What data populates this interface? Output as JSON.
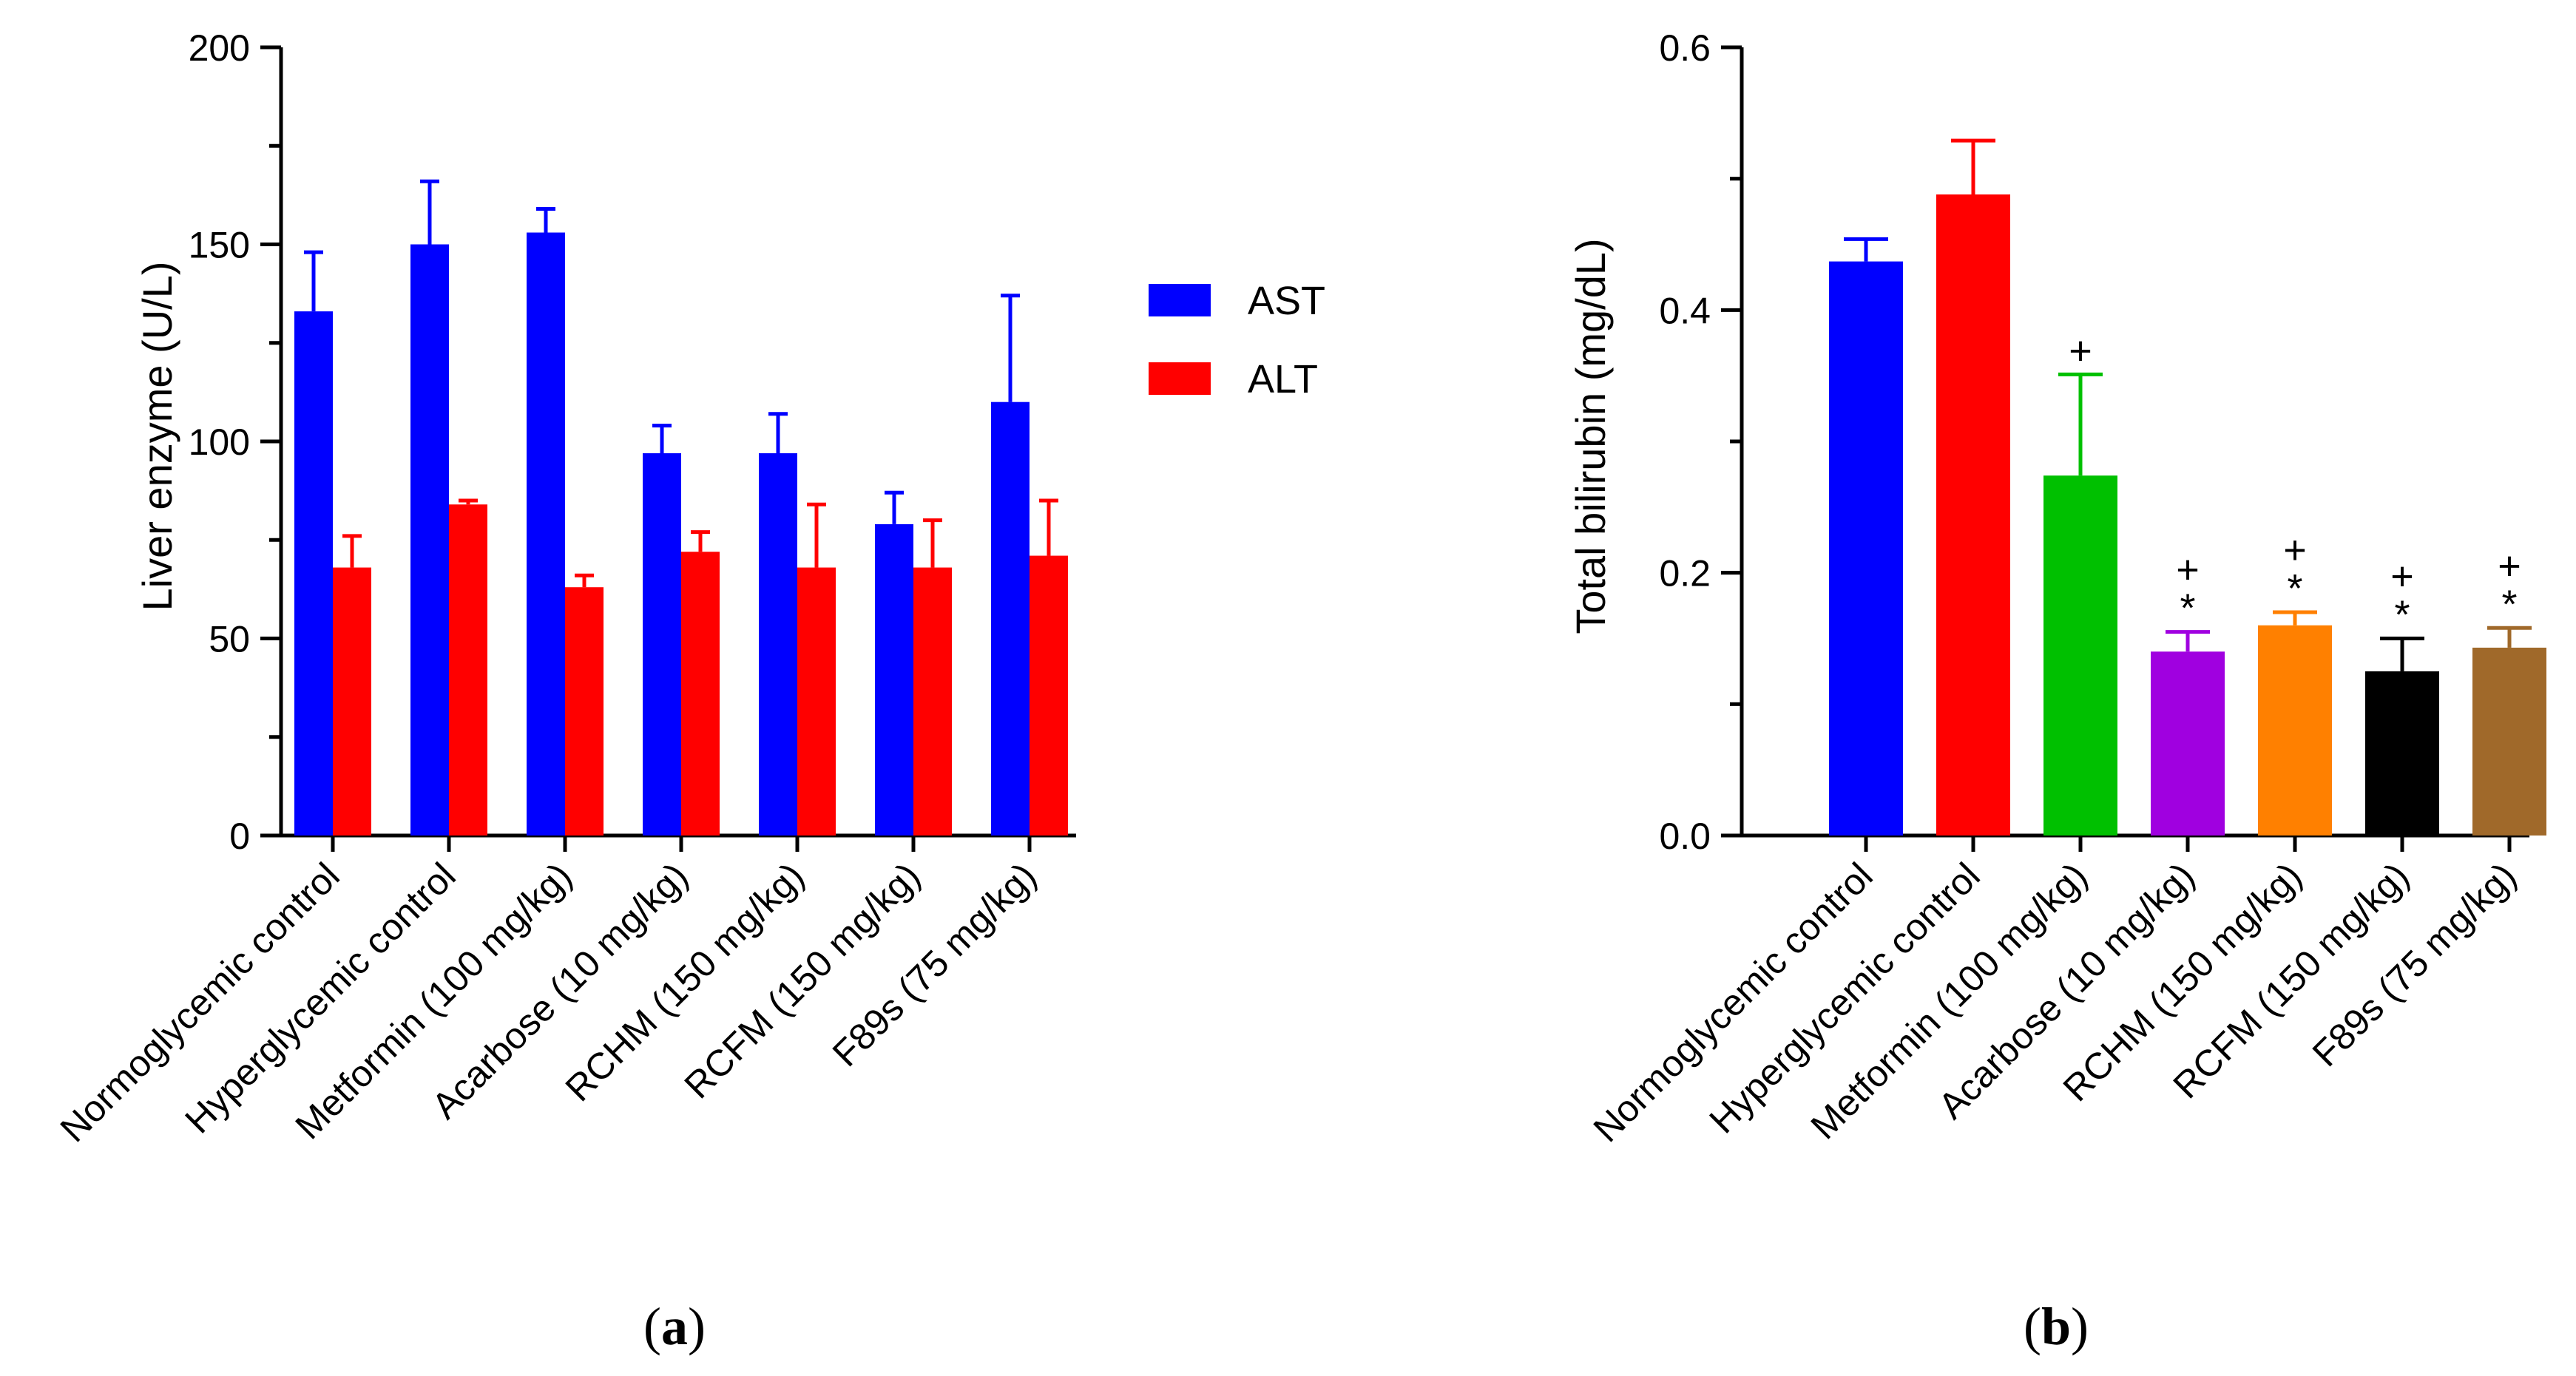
{
  "chart_data": [
    {
      "type": "bar",
      "panel_label": "(a)",
      "panel_letter": "a",
      "ylabel": "Liver enzyme (U/L)",
      "ylim": [
        0,
        200
      ],
      "yticks": [
        "0",
        "50",
        "100",
        "150",
        "200"
      ],
      "categories": [
        "Normoglycemic control",
        "Hyperglycemic control",
        "Metformin (100 mg/kg)",
        "Acarbose (10 mg/kg)",
        "RCHM (150 mg/kg)",
        "RCFM (150 mg/kg)",
        "F89s (75 mg/kg)"
      ],
      "legend_position": "right",
      "series": [
        {
          "name": "AST",
          "color": "#0000ff",
          "values": [
            133,
            150,
            153,
            97,
            97,
            79,
            110
          ],
          "errors": [
            15,
            16,
            6,
            7,
            10,
            8,
            27
          ]
        },
        {
          "name": "ALT",
          "color": "#ff0000",
          "values": [
            68,
            84,
            63,
            72,
            68,
            68,
            71
          ],
          "errors": [
            8,
            1,
            3,
            5,
            16,
            12,
            14
          ]
        }
      ]
    },
    {
      "type": "bar",
      "panel_label": "(b)",
      "panel_letter": "b",
      "ylabel": "Total bilirubin (mg/dL)",
      "ylim": [
        0,
        0.6
      ],
      "yticks": [
        "0.0",
        "0.2",
        "0.4",
        "0.6"
      ],
      "categories": [
        "Normoglycemic control",
        "Hyperglycemic control",
        "Metformin (100 mg/kg)",
        "Acarbose (10 mg/kg)",
        "RCHM (150 mg/kg)",
        "RCFM (150 mg/kg)",
        "F89s (75 mg/kg)"
      ],
      "values": [
        0.437,
        0.488,
        0.274,
        0.14,
        0.16,
        0.125,
        0.143
      ],
      "errors": [
        0.017,
        0.041,
        0.077,
        0.015,
        0.01,
        0.025,
        0.015
      ],
      "colors": [
        "#0000ff",
        "#ff0000",
        "#00c000",
        "#a000e0",
        "#ff8000",
        "#000000",
        "#a0692a"
      ],
      "annotations": [
        "",
        "",
        "+",
        "+\n*",
        "+\n*",
        "+\n*",
        "+\n*"
      ]
    }
  ]
}
